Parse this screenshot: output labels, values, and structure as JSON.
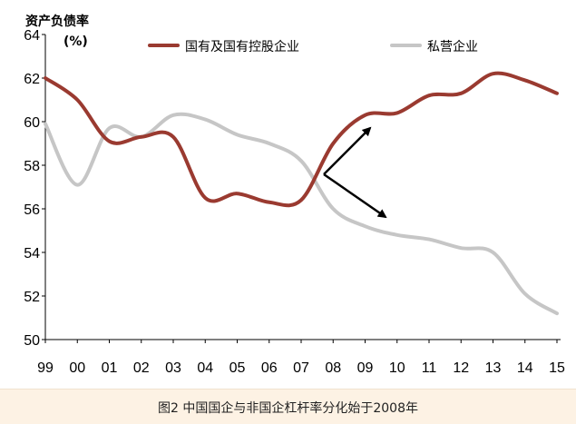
{
  "chart_data": {
    "type": "line",
    "title": "",
    "ylabel_line1": "资产负债率",
    "ylabel_line2": "(%)",
    "xlabel": "",
    "categories": [
      "99",
      "00",
      "01",
      "02",
      "03",
      "04",
      "05",
      "06",
      "07",
      "08",
      "09",
      "10",
      "11",
      "12",
      "13",
      "14",
      "15"
    ],
    "ylim": [
      50,
      64
    ],
    "yticks": [
      "50",
      "52",
      "54",
      "56",
      "58",
      "60",
      "62",
      "64"
    ],
    "series": [
      {
        "name": "国有及国有控股企业",
        "color": "#9a3a30",
        "values": [
          62.0,
          61.0,
          59.1,
          59.3,
          59.3,
          56.5,
          56.7,
          56.3,
          56.4,
          59.0,
          60.3,
          60.4,
          61.2,
          61.3,
          62.2,
          61.9,
          61.3
        ]
      },
      {
        "name": "私营企业",
        "color": "#c6c6c6",
        "values": [
          59.9,
          57.1,
          59.7,
          59.3,
          60.3,
          60.1,
          59.4,
          59.0,
          58.2,
          56.0,
          55.2,
          54.8,
          54.6,
          54.2,
          54.0,
          52.1,
          51.2
        ]
      }
    ],
    "annotation": "arrows diverging from the 2008 crossover point",
    "legend_position": "top"
  },
  "caption": "图2 中国国企与非国企杠杆率分化始于2008年"
}
